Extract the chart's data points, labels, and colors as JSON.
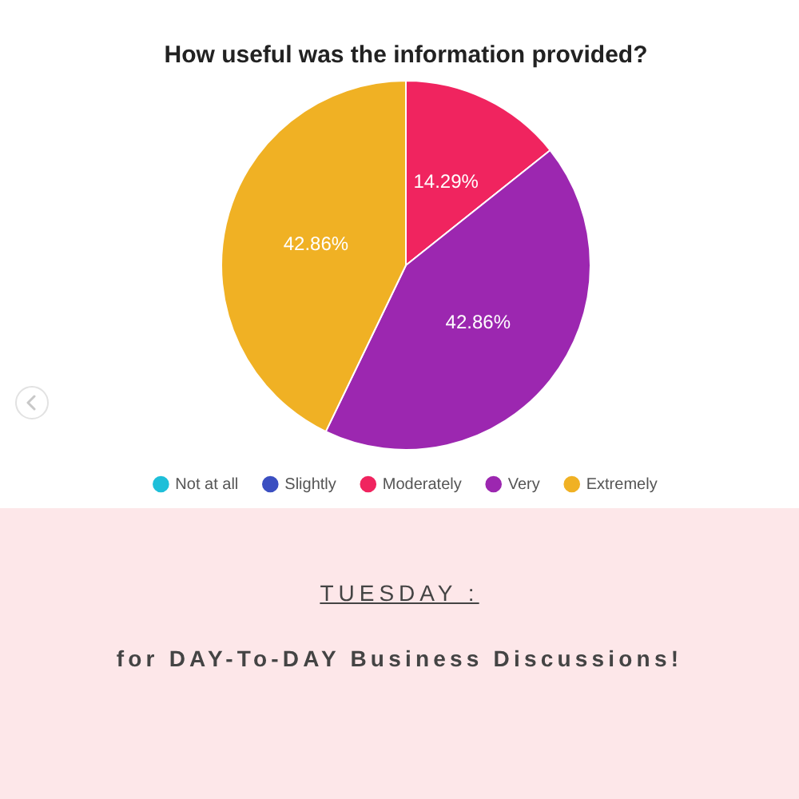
{
  "chart_data": {
    "type": "pie",
    "title": "How useful was the information provided?",
    "categories": [
      "Not at all",
      "Slightly",
      "Moderately",
      "Very",
      "Extremely"
    ],
    "values": [
      0,
      0,
      14.29,
      42.86,
      42.86
    ],
    "colors": [
      "#1ebfd9",
      "#3b4fc1",
      "#f0245f",
      "#9c27b0",
      "#f0b124"
    ],
    "value_labels": [
      null,
      null,
      "14.29%",
      "42.86%",
      "42.86%"
    ],
    "legend": "bottom",
    "annotations": [
      "TUESDAY :",
      "for DAY-To-DAY Business Discussions!"
    ]
  }
}
